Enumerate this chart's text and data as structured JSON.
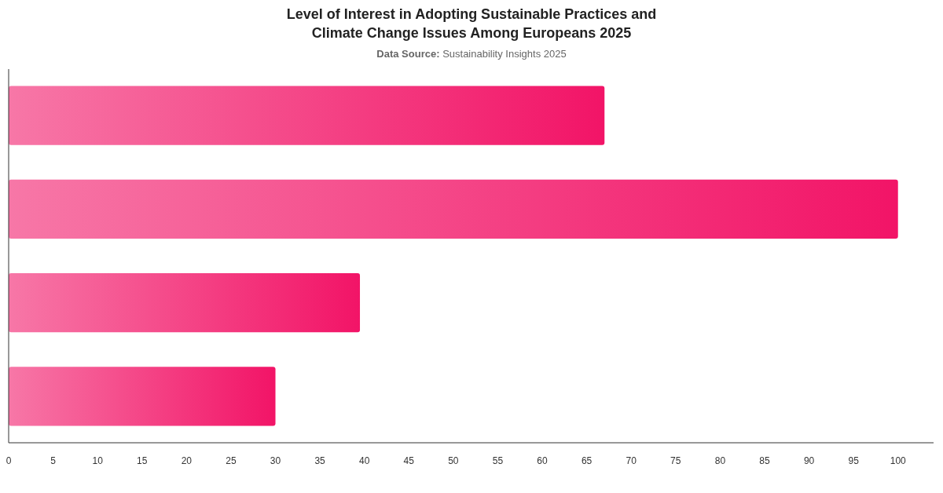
{
  "chart_data": {
    "type": "bar",
    "orientation": "horizontal",
    "title": "Level of Interest in Adopting Sustainable Practices and\nClimate Change Issues Among Europeans 2025",
    "subtitle": "Data Source: Sustainability Insights 2025",
    "categories": [
      null,
      null,
      null,
      null
    ],
    "values": [
      67,
      100,
      39.5,
      30
    ],
    "color": "#f21467",
    "xlim": [
      0,
      104
    ],
    "xticks": [
      0,
      5,
      10,
      15,
      20,
      25,
      30,
      35,
      40,
      45,
      50,
      55,
      60,
      65,
      70,
      75,
      80,
      85,
      90,
      95,
      100
    ],
    "grid": false
  }
}
